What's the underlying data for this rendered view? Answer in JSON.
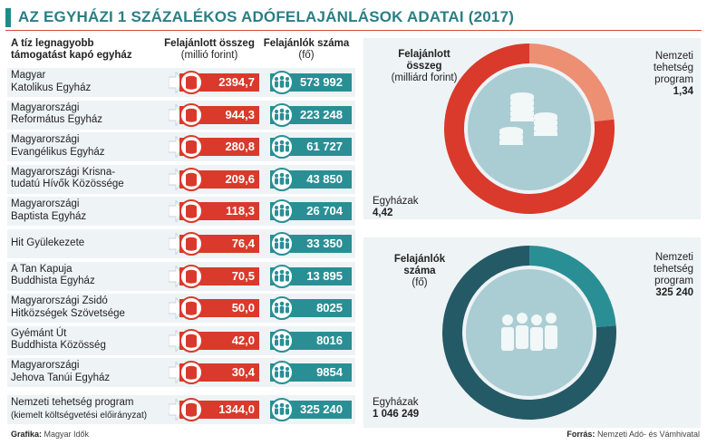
{
  "title": "AZ EGYHÁZI 1 SZÁZALÉKOS ADÓFELAJÁNLÁSOK ADATAI (2017)",
  "headers": {
    "name_line1": "A tíz legnagyobb",
    "name_line2": "támogatást kapó egyház",
    "amount_line1": "Felajánlott összeg",
    "amount_line2": "(millió forint)",
    "count_line1": "Felajánlók száma",
    "count_line2": "(fő)"
  },
  "chart_data": [
    {
      "type": "table",
      "columns": [
        "A tíz legnagyobb támogatást kapó egyház",
        "Felajánlott összeg (millió forint)",
        "Felajánlók száma (fő)"
      ],
      "rows": [
        {
          "name1": "Magyar",
          "name2": "Katolikus Egyház",
          "amount": "2394,7",
          "count": "573 992"
        },
        {
          "name1": "Magyarországi",
          "name2": "Református Egyház",
          "amount": "944,3",
          "count": "223 248"
        },
        {
          "name1": "Magyarországi",
          "name2": "Evangélikus Egyház",
          "amount": "280,8",
          "count": "61 727"
        },
        {
          "name1": "Magyarországi Krisna-",
          "name2": "tudatú Hívők Közössége",
          "amount": "209,6",
          "count": "43 850"
        },
        {
          "name1": "Magyarországi",
          "name2": "Baptista Egyház",
          "amount": "118,3",
          "count": "26 704"
        },
        {
          "name1": "Hit Gyülekezete",
          "name2": "",
          "amount": "76,4",
          "count": "33 350"
        },
        {
          "name1": "A Tan Kapuja",
          "name2": "Buddhista Egyház",
          "amount": "70,5",
          "count": "13 895"
        },
        {
          "name1": "Magyarországi Zsidó",
          "name2": "Hitközségek Szövetsége",
          "amount": "50,0",
          "count": "8025"
        },
        {
          "name1": "Gyémánt Út",
          "name2": "Buddhista Közösség",
          "amount": "42,0",
          "count": "8016"
        },
        {
          "name1": "Magyarországi",
          "name2": "Jehova Tanúi Egyház",
          "amount": "30,4",
          "count": "9854"
        },
        {
          "name1": "Nemzeti tehetség program",
          "name2": "(kiemelt költségvetési előirányzat)",
          "amount": "1344,0",
          "count": "325 240"
        }
      ]
    },
    {
      "type": "pie",
      "title_line1": "Felajánlott",
      "title_line2": "összeg",
      "title_line3": "(milliárd forint)",
      "slices": [
        {
          "line1": "Egyházak",
          "line2": "",
          "line3": "",
          "value_label": "4,42",
          "value": 4.42,
          "color": "#d93a2b"
        },
        {
          "line1": "Nemzeti",
          "line2": "tehetség",
          "line3": "program",
          "value_label": "1,34",
          "value": 1.34,
          "color": "#ec8f73"
        }
      ]
    },
    {
      "type": "pie",
      "title_line1": "Felajánlók",
      "title_line2": "száma",
      "title_line3": "(fő)",
      "slices": [
        {
          "line1": "Egyházak",
          "line2": "",
          "line3": "",
          "value_label": "1 046 249",
          "value": 1046249,
          "color": "#245a66"
        },
        {
          "line1": "Nemzeti",
          "line2": "tehetség",
          "line3": "program",
          "value_label": "325 240",
          "value": 325240,
          "color": "#2a8f95"
        }
      ]
    }
  ],
  "footer": {
    "graphic_label": "Grafika:",
    "graphic_value": "Magyar Idők",
    "source_label": "Forrás:",
    "source_value": "Nemzeti Adó- és Vámhivatal"
  },
  "colors": {
    "accent_teal": "#2a8f95",
    "accent_red": "#d93a2b",
    "panel_bg": "#eef3f6",
    "inner_circle": "#a9cdd3"
  }
}
